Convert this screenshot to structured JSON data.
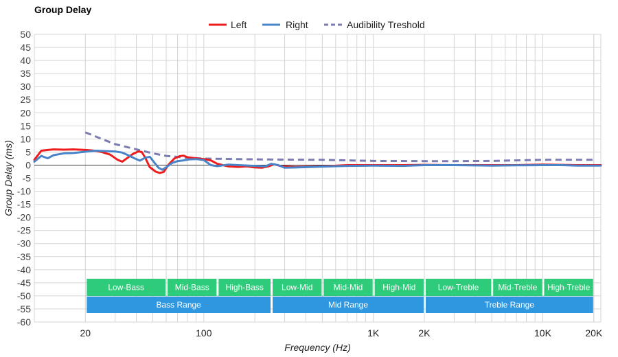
{
  "chart_data": {
    "type": "line",
    "title": "Group Delay",
    "xlabel": "Frequency (Hz)",
    "ylabel": "Group Delay (ms)",
    "x_scale": "log",
    "xlim": [
      10,
      22000
    ],
    "ylim": [
      -60,
      50
    ],
    "y_ticks": [
      50,
      45,
      40,
      35,
      30,
      25,
      20,
      15,
      10,
      5,
      0,
      -5,
      -10,
      -15,
      -20,
      -25,
      -30,
      -35,
      -40,
      -45,
      -50,
      -55,
      -60
    ],
    "x_tick_labels": [
      {
        "value": 20,
        "label": "20"
      },
      {
        "value": 100,
        "label": "100"
      },
      {
        "value": 1000,
        "label": "1K"
      },
      {
        "value": 2000,
        "label": "2K"
      },
      {
        "value": 10000,
        "label": "10K"
      },
      {
        "value": 20000,
        "label": "20K"
      }
    ],
    "grid": true,
    "legend_position": "top-center",
    "series": [
      {
        "name": "Left",
        "color": "#ee1c1c",
        "style": "solid",
        "points": [
          [
            10,
            2
          ],
          [
            11,
            5.5
          ],
          [
            12,
            5.8
          ],
          [
            13,
            6
          ],
          [
            15,
            5.9
          ],
          [
            17,
            6
          ],
          [
            20,
            5.8
          ],
          [
            22,
            5.6
          ],
          [
            25,
            5
          ],
          [
            28,
            4
          ],
          [
            31,
            2
          ],
          [
            33,
            1.3
          ],
          [
            35,
            2.5
          ],
          [
            38,
            4.2
          ],
          [
            41,
            5.2
          ],
          [
            43,
            5
          ],
          [
            45,
            3
          ],
          [
            48,
            -0.8
          ],
          [
            52,
            -2.5
          ],
          [
            55,
            -3
          ],
          [
            58,
            -2.6
          ],
          [
            62,
            0.2
          ],
          [
            67,
            2.5
          ],
          [
            72,
            3.4
          ],
          [
            76,
            3.6
          ],
          [
            80,
            3
          ],
          [
            90,
            2.6
          ],
          [
            100,
            2.3
          ],
          [
            110,
            1.8
          ],
          [
            120,
            0.5
          ],
          [
            140,
            -0.5
          ],
          [
            160,
            -0.7
          ],
          [
            180,
            -0.5
          ],
          [
            200,
            -0.9
          ],
          [
            220,
            -1
          ],
          [
            240,
            -0.5
          ],
          [
            260,
            0.3
          ],
          [
            290,
            -0.5
          ],
          [
            350,
            -0.7
          ],
          [
            500,
            -0.5
          ],
          [
            700,
            0
          ],
          [
            1000,
            0
          ],
          [
            1500,
            0
          ],
          [
            2000,
            0.1
          ],
          [
            3000,
            0
          ],
          [
            5000,
            0
          ],
          [
            7000,
            0
          ],
          [
            10000,
            0.2
          ],
          [
            13000,
            0.1
          ],
          [
            16000,
            0
          ],
          [
            22000,
            0
          ]
        ]
      },
      {
        "name": "Right",
        "color": "#4a84c8",
        "style": "solid",
        "points": [
          [
            10,
            1.3
          ],
          [
            11,
            3.5
          ],
          [
            12,
            2.6
          ],
          [
            13,
            3.8
          ],
          [
            15,
            4.5
          ],
          [
            17,
            4.6
          ],
          [
            20,
            5.1
          ],
          [
            23,
            5.5
          ],
          [
            27,
            5.3
          ],
          [
            30,
            5.2
          ],
          [
            33,
            4.8
          ],
          [
            36,
            3.7
          ],
          [
            39,
            2.6
          ],
          [
            42,
            1.7
          ],
          [
            45,
            2.8
          ],
          [
            48,
            3.2
          ],
          [
            51,
            1
          ],
          [
            54,
            -1
          ],
          [
            57,
            -1.8
          ],
          [
            61,
            -0.5
          ],
          [
            65,
            0.8
          ],
          [
            70,
            1.5
          ],
          [
            76,
            1.8
          ],
          [
            82,
            2.2
          ],
          [
            90,
            2.3
          ],
          [
            100,
            1.9
          ],
          [
            110,
            0
          ],
          [
            120,
            -0.4
          ],
          [
            140,
            0.2
          ],
          [
            160,
            0
          ],
          [
            200,
            -0.3
          ],
          [
            230,
            -0.5
          ],
          [
            250,
            0.5
          ],
          [
            275,
            0
          ],
          [
            300,
            -1
          ],
          [
            350,
            -0.9
          ],
          [
            500,
            -0.6
          ],
          [
            700,
            -0.3
          ],
          [
            1000,
            -0.2
          ],
          [
            1500,
            -0.3
          ],
          [
            2000,
            0
          ],
          [
            3000,
            0
          ],
          [
            5000,
            -0.2
          ],
          [
            7000,
            -0.1
          ],
          [
            10000,
            0
          ],
          [
            13000,
            0
          ],
          [
            16000,
            -0.2
          ],
          [
            22000,
            -0.2
          ]
        ]
      },
      {
        "name": "Audibility Treshold",
        "color": "#7b7bb1",
        "style": "dashed",
        "points": [
          [
            20,
            12.5
          ],
          [
            25,
            10
          ],
          [
            30,
            8
          ],
          [
            40,
            6
          ],
          [
            50,
            4.5
          ],
          [
            60,
            3.5
          ],
          [
            80,
            2.8
          ],
          [
            100,
            2.5
          ],
          [
            150,
            2.3
          ],
          [
            200,
            2.2
          ],
          [
            300,
            2.1
          ],
          [
            500,
            2
          ],
          [
            700,
            1.8
          ],
          [
            1000,
            1.6
          ],
          [
            2000,
            1.5
          ],
          [
            3000,
            1.5
          ],
          [
            5000,
            1.6
          ],
          [
            7000,
            1.8
          ],
          [
            10000,
            2
          ],
          [
            15000,
            2
          ],
          [
            20000,
            2
          ]
        ]
      }
    ],
    "range_bands": [
      {
        "label": "Low-Bass",
        "from": 20,
        "to": 60,
        "row": 1,
        "color": "#2ecc7a"
      },
      {
        "label": "Mid-Bass",
        "from": 60,
        "to": 120,
        "row": 1,
        "color": "#2ecc7a"
      },
      {
        "label": "High-Bass",
        "from": 120,
        "to": 250,
        "row": 1,
        "color": "#2ecc7a"
      },
      {
        "label": "Low-Mid",
        "from": 250,
        "to": 500,
        "row": 1,
        "color": "#2ecc7a"
      },
      {
        "label": "Mid-Mid",
        "from": 500,
        "to": 1000,
        "row": 1,
        "color": "#2ecc7a"
      },
      {
        "label": "High-Mid",
        "from": 1000,
        "to": 2000,
        "row": 1,
        "color": "#2ecc7a"
      },
      {
        "label": "Low-Treble",
        "from": 2000,
        "to": 5000,
        "row": 1,
        "color": "#2ecc7a"
      },
      {
        "label": "Mid-Treble",
        "from": 5000,
        "to": 10000,
        "row": 1,
        "color": "#2ecc7a"
      },
      {
        "label": "High-Treble",
        "from": 10000,
        "to": 20000,
        "row": 1,
        "color": "#2ecc7a"
      },
      {
        "label": "Bass Range",
        "from": 20,
        "to": 250,
        "row": 2,
        "color": "#2f97e0"
      },
      {
        "label": "Mid Range",
        "from": 250,
        "to": 2000,
        "row": 2,
        "color": "#2f97e0"
      },
      {
        "label": "Treble Range",
        "from": 2000,
        "to": 20000,
        "row": 2,
        "color": "#2f97e0"
      }
    ]
  }
}
